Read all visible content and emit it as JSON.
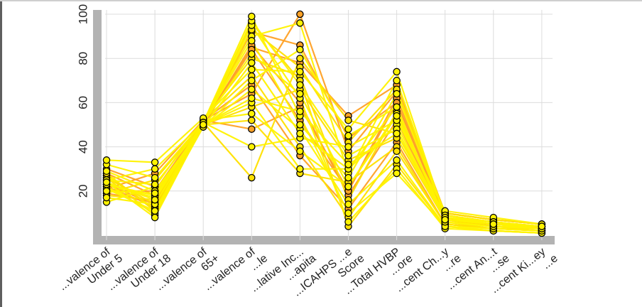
{
  "chart_data": {
    "type": "parallel-coordinates",
    "title": "",
    "ylim": [
      0,
      100
    ],
    "y_ticks": [
      "20",
      "40",
      "60",
      "80",
      "100"
    ],
    "grid": true,
    "axes": [
      "...valence of Under 5",
      "...valence of Under 18",
      "...valence of 65+",
      "...valence of ...le",
      "...lative Inc... ...apita",
      "...ICAHPS ...e Score",
      "...Total HVBP ...ore",
      "...cent Ch...y ...re",
      "...cent An...t ...se",
      "...cent Ki...ey ...e"
    ],
    "colors": {
      "palette": [
        "#fff200",
        "#ffe000",
        "#ffc21a",
        "#ffa126",
        "#ff7f2a",
        "#f2552a",
        "#d8301f",
        "#b5141a"
      ],
      "band": "#b3b3b3",
      "grid": "#dcdcdc"
    },
    "series": [
      {
        "values": [
          15,
          22,
          52,
          55,
          38,
          22,
          55,
          8,
          6,
          4
        ]
      },
      {
        "values": [
          17,
          14,
          50,
          60,
          30,
          30,
          50,
          7,
          5,
          3
        ]
      },
      {
        "values": [
          19,
          25,
          51,
          26,
          80,
          52,
          46,
          9,
          6,
          4
        ]
      },
      {
        "values": [
          21,
          28,
          52,
          64,
          100,
          38,
          65,
          10,
          7,
          5
        ]
      },
      {
        "values": [
          23,
          18,
          49,
          70,
          84,
          45,
          58,
          6,
          4,
          3
        ]
      },
      {
        "values": [
          25,
          30,
          51,
          90,
          96,
          28,
          70,
          8,
          5,
          4
        ]
      },
      {
        "values": [
          27,
          12,
          50,
          58,
          66,
          34,
          44,
          7,
          4,
          2
        ]
      },
      {
        "values": [
          30,
          22,
          52,
          48,
          58,
          20,
          62,
          9,
          6,
          3
        ]
      },
      {
        "values": [
          32,
          26,
          51,
          40,
          44,
          40,
          52,
          11,
          8,
          5
        ]
      },
      {
        "values": [
          34,
          33,
          53,
          75,
          74,
          48,
          74,
          8,
          6,
          4
        ]
      },
      {
        "values": [
          18,
          16,
          50,
          52,
          28,
          24,
          40,
          5,
          3,
          2
        ]
      },
      {
        "values": [
          20,
          20,
          51,
          85,
          78,
          54,
          68,
          10,
          7,
          5
        ]
      },
      {
        "values": [
          22,
          10,
          49,
          66,
          48,
          14,
          34,
          4,
          2,
          1
        ]
      },
      {
        "values": [
          24,
          8,
          50,
          95,
          62,
          6,
          30,
          3,
          2,
          1
        ]
      },
      {
        "values": [
          26,
          14,
          52,
          80,
          72,
          16,
          56,
          6,
          3,
          2
        ]
      },
      {
        "values": [
          28,
          18,
          51,
          92,
          86,
          44,
          60,
          8,
          4,
          3
        ]
      },
      {
        "values": [
          25,
          23,
          50,
          97,
          68,
          36,
          48,
          7,
          5,
          4
        ]
      },
      {
        "values": [
          21,
          11,
          51,
          99,
          54,
          10,
          28,
          4,
          3,
          2
        ]
      },
      {
        "values": [
          27,
          12,
          52,
          72,
          40,
          8,
          38,
          5,
          3,
          2
        ]
      },
      {
        "values": [
          19,
          15,
          50,
          86,
          60,
          18,
          52,
          7,
          4,
          3
        ]
      },
      {
        "values": [
          23,
          17,
          51,
          88,
          50,
          26,
          64,
          9,
          6,
          4
        ]
      },
      {
        "values": [
          29,
          20,
          49,
          78,
          46,
          30,
          58,
          6,
          4,
          3
        ]
      },
      {
        "values": [
          26,
          9,
          50,
          93,
          76,
          42,
          66,
          10,
          7,
          5
        ]
      },
      {
        "values": [
          22,
          13,
          52,
          68,
          36,
          12,
          42,
          5,
          3,
          2
        ]
      },
      {
        "values": [
          24,
          16,
          51,
          82,
          64,
          22,
          54,
          8,
          5,
          3
        ]
      },
      {
        "values": [
          20,
          19,
          50,
          62,
          56,
          32,
          46,
          7,
          5,
          4
        ]
      },
      {
        "values": [
          28,
          11,
          51,
          96,
          70,
          4,
          32,
          4,
          2,
          1
        ]
      },
      {
        "values": [
          23,
          14,
          50,
          84,
          52,
          20,
          60,
          8,
          5,
          3
        ]
      }
    ]
  }
}
